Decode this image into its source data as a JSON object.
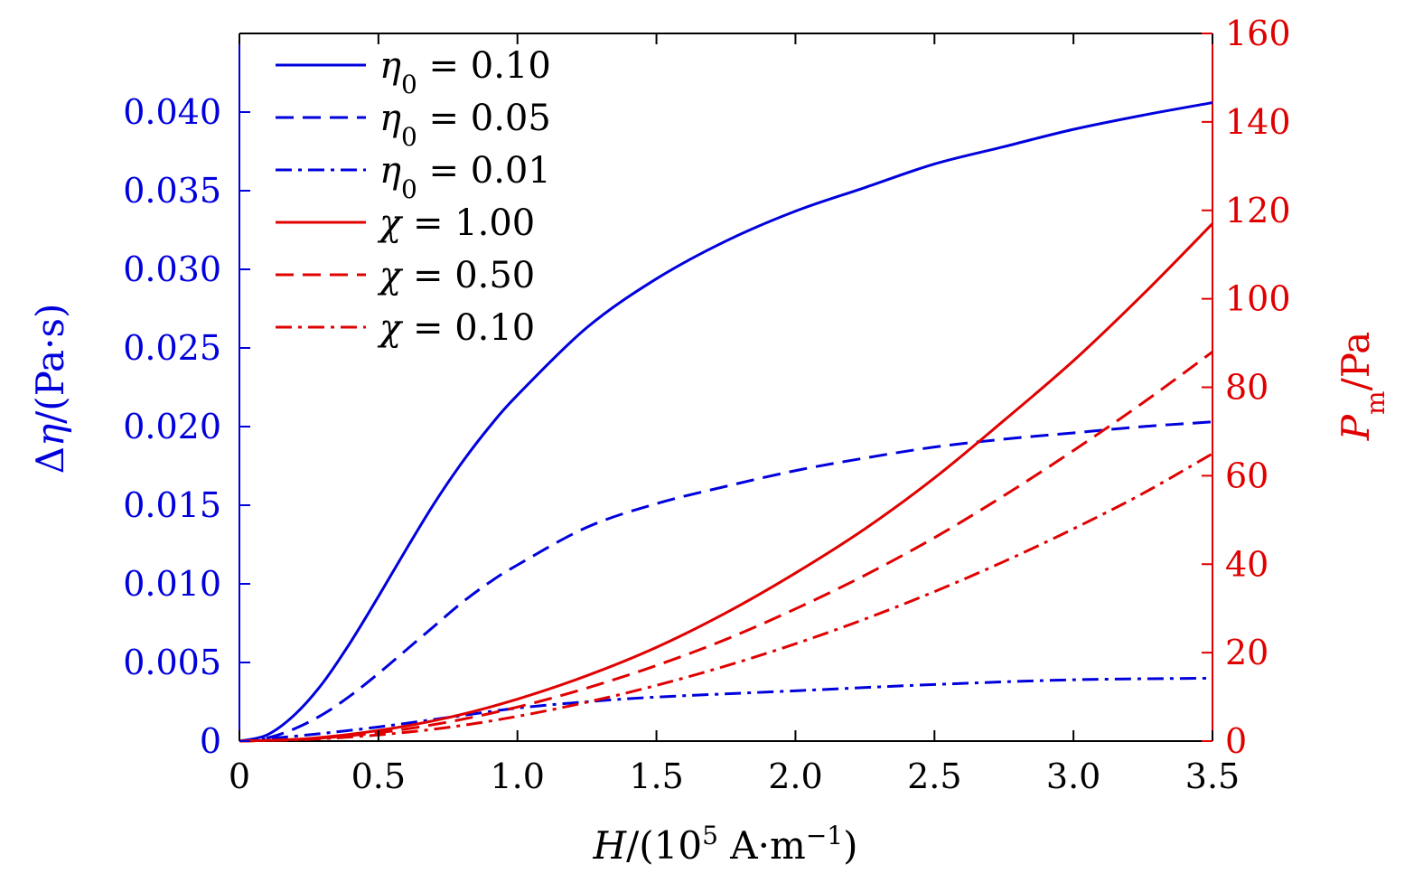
{
  "chart_data": {
    "type": "line",
    "x": {
      "label_var": "H",
      "label_unit_prefix": "/(10",
      "label_unit_exp": "5",
      "label_unit_mid": " A·m",
      "label_unit_exp2": "−1",
      "label_unit_suffix": ")",
      "range": [
        0,
        3.5
      ],
      "ticks": [
        0,
        0.5,
        1.0,
        1.5,
        2.0,
        2.5,
        3.0,
        3.5
      ],
      "tick_labels": [
        "0",
        "0.5",
        "1.0",
        "1.5",
        "2.0",
        "2.5",
        "3.0",
        "3.5"
      ]
    },
    "y_left": {
      "label": "Δη/(Pa·s)",
      "label_delta": "Δ",
      "label_var": "η",
      "label_unit": "/(Pa·s)",
      "color": "#0000dd",
      "range": [
        0,
        0.045
      ],
      "ticks": [
        0,
        0.005,
        0.01,
        0.015,
        0.02,
        0.025,
        0.03,
        0.035,
        0.04
      ],
      "tick_labels": [
        "0",
        "0.005",
        "0.010",
        "0.015",
        "0.020",
        "0.025",
        "0.030",
        "0.035",
        "0.040"
      ]
    },
    "y_right": {
      "label_var": "P",
      "label_sub": "m",
      "label_unit": "/Pa",
      "color": "#e00000",
      "range": [
        0,
        160
      ],
      "ticks": [
        0,
        20,
        40,
        60,
        80,
        100,
        120,
        140,
        160
      ],
      "tick_labels": [
        "0",
        "20",
        "40",
        "60",
        "80",
        "100",
        "120",
        "140",
        "160"
      ]
    },
    "series": [
      {
        "name": "η0 = 0.10",
        "sym": "η",
        "sub": "0",
        "val": " = 0.10",
        "axis": "left",
        "color": "#0000dd",
        "dash": "solid",
        "x": [
          0,
          0.1,
          0.2,
          0.3,
          0.4,
          0.5,
          0.6,
          0.7,
          0.8,
          0.9,
          1.0,
          1.25,
          1.5,
          1.75,
          2.0,
          2.25,
          2.5,
          2.75,
          3.0,
          3.25,
          3.5
        ],
        "y": [
          0,
          0.0004,
          0.0017,
          0.0037,
          0.0063,
          0.0092,
          0.0122,
          0.0151,
          0.0177,
          0.02,
          0.022,
          0.0263,
          0.0294,
          0.0318,
          0.0337,
          0.0352,
          0.0367,
          0.0378,
          0.0389,
          0.0398,
          0.0406
        ]
      },
      {
        "name": "η0 = 0.05",
        "sym": "η",
        "sub": "0",
        "val": " = 0.05",
        "axis": "left",
        "color": "#0000dd",
        "dash": "dashed",
        "x": [
          0,
          0.1,
          0.2,
          0.3,
          0.4,
          0.5,
          0.6,
          0.7,
          0.8,
          0.9,
          1.0,
          1.25,
          1.5,
          1.75,
          2.0,
          2.25,
          2.5,
          2.75,
          3.0,
          3.25,
          3.5
        ],
        "y": [
          0,
          0.0002,
          0.0008,
          0.0017,
          0.0029,
          0.0043,
          0.0058,
          0.0073,
          0.0088,
          0.0101,
          0.0112,
          0.0136,
          0.0151,
          0.0162,
          0.0172,
          0.018,
          0.0187,
          0.0192,
          0.0196,
          0.02,
          0.0203
        ]
      },
      {
        "name": "η0 = 0.01",
        "sym": "η",
        "sub": "0",
        "val": " = 0.01",
        "axis": "left",
        "color": "#0000dd",
        "dash": "dashdot",
        "x": [
          0,
          0.25,
          0.5,
          0.75,
          1.0,
          1.25,
          1.5,
          2.0,
          2.5,
          3.0,
          3.5
        ],
        "y": [
          0,
          0.0004,
          0.0009,
          0.0015,
          0.0021,
          0.0025,
          0.0028,
          0.0032,
          0.0036,
          0.0039,
          0.004
        ]
      },
      {
        "name": "χ = 1.00",
        "sym": "χ",
        "sub": "",
        "val": " = 1.00",
        "axis": "right",
        "color": "#e00000",
        "dash": "solid",
        "x": [
          0,
          0.25,
          0.5,
          0.75,
          1.0,
          1.25,
          1.5,
          1.75,
          2.0,
          2.25,
          2.5,
          2.75,
          3.0,
          3.25,
          3.5
        ],
        "y": [
          0,
          0.6,
          2.4,
          5.3,
          9.5,
          14.8,
          21.2,
          29.0,
          38.0,
          48.0,
          59.5,
          72.5,
          86.0,
          101.0,
          117.0
        ]
      },
      {
        "name": "χ = 0.50",
        "sym": "χ",
        "sub": "",
        "val": " = 0.50",
        "axis": "right",
        "color": "#e00000",
        "dash": "dashed",
        "x": [
          0,
          0.25,
          0.5,
          0.75,
          1.0,
          1.25,
          1.5,
          1.75,
          2.0,
          2.25,
          2.5,
          2.75,
          3.0,
          3.25,
          3.5
        ],
        "y": [
          0,
          0.5,
          1.9,
          4.3,
          7.7,
          12.0,
          17.1,
          23.0,
          29.9,
          37.5,
          46.0,
          55.5,
          65.7,
          76.5,
          88.0
        ]
      },
      {
        "name": "χ = 0.10",
        "sym": "χ",
        "sub": "",
        "val": " = 0.10",
        "axis": "right",
        "color": "#e00000",
        "dash": "dashdot",
        "x": [
          0,
          0.25,
          0.5,
          0.75,
          1.0,
          1.25,
          1.5,
          1.75,
          2.0,
          2.25,
          2.5,
          2.75,
          3.0,
          3.25,
          3.5
        ],
        "y": [
          0,
          0.4,
          1.4,
          3.1,
          5.6,
          8.8,
          12.6,
          17.0,
          22.0,
          27.6,
          33.8,
          40.6,
          48.0,
          56.0,
          65.0
        ]
      }
    ],
    "legend_position": "top-left",
    "grid": false
  }
}
